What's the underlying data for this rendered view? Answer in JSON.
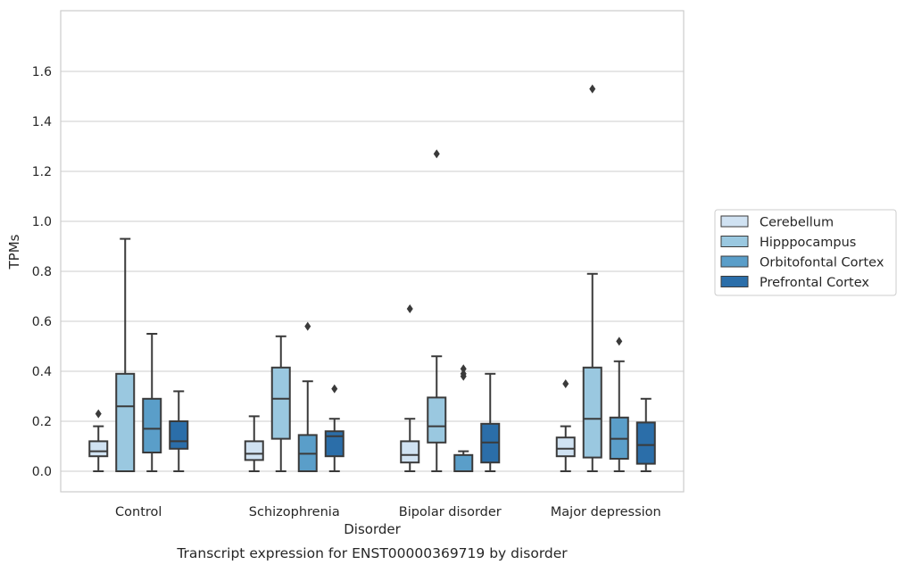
{
  "chart_data": {
    "type": "box",
    "title": "Transcript expression for ENST00000369719 by disorder",
    "xlabel": "Disorder",
    "ylabel": "TPMs",
    "ylim": [
      -0.07,
      1.61
    ],
    "yticks": [
      0.0,
      0.2,
      0.4,
      0.6,
      0.8,
      1.0,
      1.2,
      1.4,
      1.6
    ],
    "ytick_labels": [
      "0.0",
      "0.2",
      "0.4",
      "0.6",
      "0.8",
      "1.0",
      "1.2",
      "1.4",
      "1.6"
    ],
    "grid": "horizontal",
    "legend_placement": "right",
    "categories": [
      "Control",
      "Schizophrenia",
      "Bipolar disorder",
      "Major depression"
    ],
    "series": [
      {
        "name": "Cerebellum",
        "color": "#d0e2f2",
        "boxes": [
          {
            "whislo": 0.0,
            "q1": 0.06,
            "med": 0.08,
            "q3": 0.12,
            "whishi": 0.18,
            "fliers": [
              0.23
            ]
          },
          {
            "whislo": 0.0,
            "q1": 0.045,
            "med": 0.07,
            "q3": 0.12,
            "whishi": 0.22,
            "fliers": []
          },
          {
            "whislo": 0.0,
            "q1": 0.035,
            "med": 0.065,
            "q3": 0.12,
            "whishi": 0.21,
            "fliers": [
              0.65
            ]
          },
          {
            "whislo": 0.0,
            "q1": 0.06,
            "med": 0.09,
            "q3": 0.135,
            "whishi": 0.18,
            "fliers": [
              0.35
            ]
          }
        ]
      },
      {
        "name": "Hipppocampus",
        "color": "#9ac8e0",
        "boxes": [
          {
            "whislo": 0.0,
            "q1": 0.0,
            "med": 0.26,
            "q3": 0.39,
            "whishi": 0.93,
            "fliers": []
          },
          {
            "whislo": 0.0,
            "q1": 0.13,
            "med": 0.29,
            "q3": 0.415,
            "whishi": 0.54,
            "fliers": []
          },
          {
            "whislo": 0.0,
            "q1": 0.115,
            "med": 0.18,
            "q3": 0.295,
            "whishi": 0.46,
            "fliers": [
              1.27
            ]
          },
          {
            "whislo": 0.0,
            "q1": 0.055,
            "med": 0.21,
            "q3": 0.415,
            "whishi": 0.79,
            "fliers": [
              1.53
            ]
          }
        ]
      },
      {
        "name": "Orbitofontal Cortex",
        "color": "#5a9ec9",
        "boxes": [
          {
            "whislo": 0.0,
            "q1": 0.075,
            "med": 0.17,
            "q3": 0.29,
            "whishi": 0.55,
            "fliers": []
          },
          {
            "whislo": 0.0,
            "q1": 0.0,
            "med": 0.07,
            "q3": 0.145,
            "whishi": 0.36,
            "fliers": [
              0.58
            ]
          },
          {
            "whislo": 0.0,
            "q1": 0.0,
            "med": 0.0,
            "q3": 0.065,
            "whishi": 0.08,
            "fliers": [
              0.38,
              0.39,
              0.41
            ]
          },
          {
            "whislo": 0.0,
            "q1": 0.05,
            "med": 0.13,
            "q3": 0.215,
            "whishi": 0.44,
            "fliers": [
              0.52
            ]
          }
        ]
      },
      {
        "name": "Prefrontal Cortex",
        "color": "#2b6ea9",
        "boxes": [
          {
            "whislo": 0.0,
            "q1": 0.09,
            "med": 0.12,
            "q3": 0.2,
            "whishi": 0.32,
            "fliers": []
          },
          {
            "whislo": 0.0,
            "q1": 0.06,
            "med": 0.14,
            "q3": 0.16,
            "whishi": 0.21,
            "fliers": [
              0.33
            ]
          },
          {
            "whislo": 0.0,
            "q1": 0.035,
            "med": 0.115,
            "q3": 0.19,
            "whishi": 0.39,
            "fliers": []
          },
          {
            "whislo": 0.0,
            "q1": 0.03,
            "med": 0.105,
            "q3": 0.195,
            "whishi": 0.29,
            "fliers": []
          }
        ]
      }
    ]
  }
}
